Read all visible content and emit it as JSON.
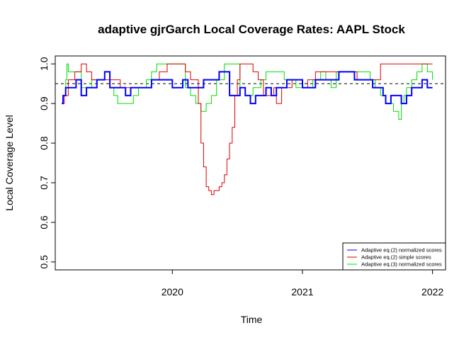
{
  "chart_data": {
    "type": "line",
    "title": "adaptive gjrGarch Local Coverage Rates: AAPL Stock",
    "xlabel": "Time",
    "ylabel": "Local Coverage Level",
    "xlim": [
      2019.1,
      2022.1
    ],
    "ylim": [
      0.48,
      1.02
    ],
    "x_ticks": [
      2020,
      2021,
      2022
    ],
    "x_tick_labels": [
      "2020",
      "2021",
      "2022"
    ],
    "y_ticks": [
      0.5,
      0.6,
      0.7,
      0.8,
      0.9,
      1.0
    ],
    "y_tick_labels": [
      "0.5",
      "0.6",
      "0.7",
      "0.8",
      "0.9",
      "1.0"
    ],
    "reference_line": {
      "y": 0.95,
      "style": "dashed",
      "color": "#000000"
    },
    "legend": {
      "position": "bottom-right",
      "entries": [
        {
          "label": "Adaptive eq.(2) normalized scores",
          "color": "#0000ff"
        },
        {
          "label": "Adaptive eq.(2) simple scores",
          "color": "#dd0000"
        },
        {
          "label": "Adaptive eq.(3) normalized scores",
          "color": "#00dd00"
        }
      ]
    },
    "series": [
      {
        "name": "Adaptive eq.(3) normalized scores",
        "color": "#00dd00",
        "width": 1,
        "x": [
          2019.15,
          2019.16,
          2019.18,
          2019.19,
          2019.2,
          2019.22,
          2019.25,
          2019.3,
          2019.35,
          2019.38,
          2019.4,
          2019.44,
          2019.48,
          2019.52,
          2019.55,
          2019.58,
          2019.62,
          2019.66,
          2019.7,
          2019.74,
          2019.8,
          2019.84,
          2019.88,
          2019.92,
          2019.96,
          2020.0,
          2020.05,
          2020.1,
          2020.14,
          2020.18,
          2020.22,
          2020.26,
          2020.3,
          2020.34,
          2020.4,
          2020.44,
          2020.48,
          2020.52,
          2020.56,
          2020.62,
          2020.68,
          2020.72,
          2020.78,
          2020.82,
          2020.86,
          2020.9,
          2020.95,
          2021.0,
          2021.04,
          2021.08,
          2021.14,
          2021.18,
          2021.22,
          2021.26,
          2021.3,
          2021.34,
          2021.38,
          2021.42,
          2021.48,
          2021.52,
          2021.56,
          2021.6,
          2021.64,
          2021.66,
          2021.7,
          2021.72,
          2021.74,
          2021.76,
          2021.78,
          2021.8,
          2021.84,
          2021.88,
          2021.92,
          2021.96,
          2022.0
        ],
        "y": [
          0.9,
          0.92,
          0.96,
          1.0,
          0.98,
          0.98,
          0.98,
          0.94,
          0.94,
          0.96,
          0.96,
          0.96,
          0.98,
          0.94,
          0.92,
          0.9,
          0.9,
          0.9,
          0.92,
          0.94,
          0.96,
          0.98,
          1.0,
          1.0,
          1.0,
          1.0,
          1.0,
          0.94,
          0.92,
          0.9,
          0.88,
          0.9,
          0.92,
          0.96,
          1.0,
          1.0,
          1.0,
          0.94,
          0.92,
          0.94,
          0.96,
          0.98,
          0.98,
          0.98,
          0.96,
          0.96,
          0.94,
          0.94,
          0.94,
          0.96,
          0.98,
          0.96,
          0.94,
          0.98,
          0.98,
          0.98,
          0.98,
          0.98,
          0.98,
          0.96,
          0.94,
          0.92,
          0.9,
          0.9,
          0.88,
          0.88,
          0.86,
          0.9,
          0.92,
          0.94,
          0.96,
          0.98,
          1.0,
          0.98,
          0.96
        ]
      },
      {
        "name": "Adaptive eq.(2) simple scores",
        "color": "#dd0000",
        "width": 1,
        "x": [
          2019.15,
          2019.17,
          2019.2,
          2019.25,
          2019.3,
          2019.34,
          2019.38,
          2019.42,
          2019.48,
          2019.54,
          2019.6,
          2019.66,
          2019.72,
          2019.78,
          2019.84,
          2019.9,
          2019.96,
          2020.0,
          2020.06,
          2020.1,
          2020.14,
          2020.18,
          2020.2,
          2020.22,
          2020.24,
          2020.26,
          2020.28,
          2020.3,
          2020.32,
          2020.36,
          2020.38,
          2020.4,
          2020.42,
          2020.44,
          2020.46,
          2020.48,
          2020.5,
          2020.52,
          2020.54,
          2020.56,
          2020.62,
          2020.66,
          2020.7,
          2020.74,
          2020.78,
          2020.8,
          2020.84,
          2020.88,
          2020.92,
          2020.96,
          2021.0,
          2021.04,
          2021.1,
          2021.16,
          2021.2,
          2021.26,
          2021.3,
          2021.36,
          2021.42,
          2021.48,
          2021.54,
          2021.6,
          2021.66,
          2021.72,
          2021.78,
          2021.84,
          2021.9,
          2021.96,
          2022.0
        ],
        "y": [
          0.9,
          0.92,
          0.96,
          0.98,
          1.0,
          0.98,
          0.96,
          0.96,
          0.96,
          0.96,
          0.94,
          0.94,
          0.94,
          0.94,
          0.96,
          0.98,
          1.0,
          1.0,
          1.0,
          0.98,
          0.96,
          0.96,
          0.9,
          0.8,
          0.74,
          0.69,
          0.68,
          0.67,
          0.68,
          0.69,
          0.7,
          0.72,
          0.76,
          0.8,
          0.84,
          0.92,
          0.96,
          1.0,
          1.0,
          1.0,
          0.98,
          0.96,
          0.92,
          0.92,
          0.94,
          0.9,
          0.94,
          0.94,
          0.96,
          0.96,
          0.94,
          0.96,
          0.98,
          0.98,
          0.98,
          0.98,
          0.98,
          0.98,
          0.96,
          0.96,
          0.96,
          1.0,
          1.0,
          1.0,
          1.0,
          1.0,
          1.0,
          1.0,
          1.0
        ]
      },
      {
        "name": "Adaptive eq.(2) normalized scores",
        "color": "#0000ff",
        "width": 2,
        "x": [
          2019.15,
          2019.16,
          2019.18,
          2019.22,
          2019.26,
          2019.3,
          2019.34,
          2019.38,
          2019.42,
          2019.48,
          2019.52,
          2019.56,
          2019.6,
          2019.64,
          2019.68,
          2019.72,
          2019.76,
          2019.8,
          2019.84,
          2019.88,
          2019.92,
          2019.96,
          2020.0,
          2020.04,
          2020.08,
          2020.12,
          2020.16,
          2020.2,
          2020.24,
          2020.28,
          2020.32,
          2020.36,
          2020.4,
          2020.44,
          2020.48,
          2020.52,
          2020.56,
          2020.6,
          2020.64,
          2020.68,
          2020.72,
          2020.76,
          2020.8,
          2020.84,
          2020.88,
          2020.92,
          2020.96,
          2021.0,
          2021.04,
          2021.1,
          2021.16,
          2021.22,
          2021.28,
          2021.34,
          2021.4,
          2021.46,
          2021.5,
          2021.54,
          2021.58,
          2021.62,
          2021.64,
          2021.68,
          2021.72,
          2021.76,
          2021.8,
          2021.84,
          2021.88,
          2021.92,
          2021.96,
          2022.0
        ],
        "y": [
          0.9,
          0.92,
          0.94,
          0.94,
          0.96,
          0.92,
          0.94,
          0.94,
          0.96,
          0.98,
          0.94,
          0.94,
          0.94,
          0.92,
          0.94,
          0.94,
          0.94,
          0.94,
          0.96,
          0.96,
          0.96,
          0.96,
          0.94,
          0.94,
          0.96,
          0.94,
          0.94,
          0.94,
          0.96,
          0.96,
          0.96,
          0.98,
          0.98,
          0.92,
          0.92,
          0.94,
          0.92,
          0.9,
          0.92,
          0.92,
          0.94,
          0.92,
          0.94,
          0.94,
          0.96,
          0.96,
          0.96,
          0.94,
          0.94,
          0.96,
          0.96,
          0.96,
          0.98,
          0.98,
          0.96,
          0.96,
          0.96,
          0.94,
          0.94,
          0.92,
          0.9,
          0.92,
          0.92,
          0.9,
          0.92,
          0.94,
          0.94,
          0.96,
          0.94,
          0.94
        ]
      }
    ]
  }
}
